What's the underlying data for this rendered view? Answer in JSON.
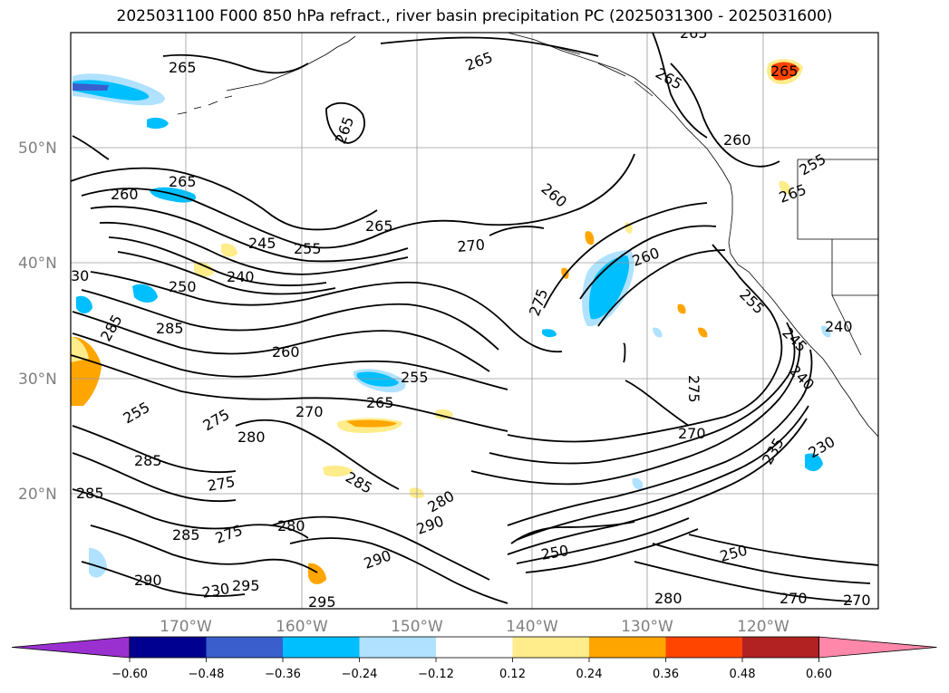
{
  "title": "2025031100 F000 850 hPa refract., river basin precipitation PC (2025031300 - 2025031600)",
  "map": {
    "lat_ticks": [
      "50°N",
      "40°N",
      "30°N",
      "20°N"
    ],
    "lon_ticks": [
      "170°W",
      "160°W",
      "150°W",
      "140°W",
      "130°W",
      "120°W"
    ],
    "contour_labels": [
      {
        "text": "265"
      },
      {
        "text": "265"
      },
      {
        "text": "265"
      },
      {
        "text": "265"
      },
      {
        "text": "265"
      },
      {
        "text": "265"
      },
      {
        "text": "265"
      },
      {
        "text": "265"
      },
      {
        "text": "265"
      },
      {
        "text": "265"
      },
      {
        "text": "260"
      },
      {
        "text": "260"
      },
      {
        "text": "260"
      },
      {
        "text": "260"
      },
      {
        "text": "260"
      },
      {
        "text": "255"
      },
      {
        "text": "255"
      },
      {
        "text": "255"
      },
      {
        "text": "255"
      },
      {
        "text": "255"
      },
      {
        "text": "245"
      },
      {
        "text": "245"
      },
      {
        "text": "240"
      },
      {
        "text": "240"
      },
      {
        "text": "240"
      },
      {
        "text": "250"
      },
      {
        "text": "250"
      },
      {
        "text": "250"
      },
      {
        "text": "270"
      },
      {
        "text": "270"
      },
      {
        "text": "270"
      },
      {
        "text": "270"
      },
      {
        "text": "275"
      },
      {
        "text": "275"
      },
      {
        "text": "275"
      },
      {
        "text": "275"
      },
      {
        "text": "280"
      },
      {
        "text": "280"
      },
      {
        "text": "280"
      },
      {
        "text": "280"
      },
      {
        "text": "285"
      },
      {
        "text": "285"
      },
      {
        "text": "285"
      },
      {
        "text": "285"
      },
      {
        "text": "285"
      },
      {
        "text": "285"
      },
      {
        "text": "290"
      },
      {
        "text": "290"
      },
      {
        "text": "290"
      },
      {
        "text": "295"
      },
      {
        "text": "295"
      },
      {
        "text": "235"
      },
      {
        "text": "230"
      },
      {
        "text": "230"
      },
      {
        "text": "30"
      },
      {
        "text": "275"
      },
      {
        "text": "270"
      }
    ]
  },
  "colorbar": {
    "ticks": [
      "−0.60",
      "−0.48",
      "−0.36",
      "−0.24",
      "−0.12",
      "0.12",
      "0.24",
      "0.36",
      "0.48",
      "0.60"
    ],
    "colors": [
      "#9b30d0",
      "#000090",
      "#3a5fcd",
      "#00bfff",
      "#b0e2ff",
      "#ffffff",
      "#ffec8b",
      "#ffa500",
      "#ff4500",
      "#b22222",
      "#ff88aa"
    ]
  }
}
